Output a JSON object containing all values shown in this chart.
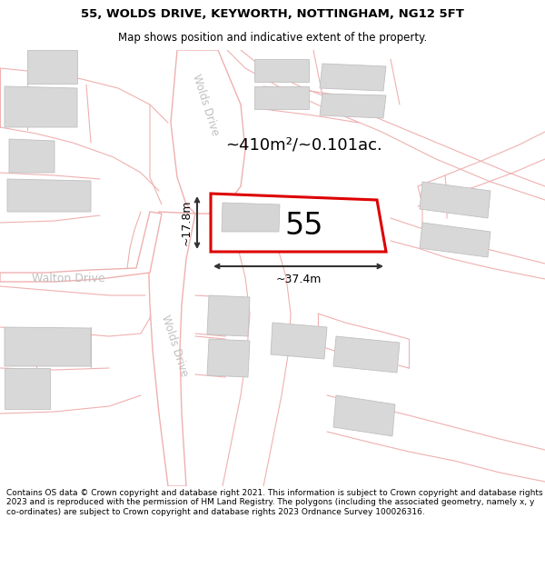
{
  "title_line1": "55, WOLDS DRIVE, KEYWORTH, NOTTINGHAM, NG12 5FT",
  "title_line2": "Map shows position and indicative extent of the property.",
  "footer_text": "Contains OS data © Crown copyright and database right 2021. This information is subject to Crown copyright and database rights 2023 and is reproduced with the permission of HM Land Registry. The polygons (including the associated geometry, namely x, y co-ordinates) are subject to Crown copyright and database rights 2023 Ordnance Survey 100026316.",
  "bg_color": "#ebebeb",
  "map_bg": "#f5f5f5",
  "road_fill": "#ffffff",
  "pink": "#f0b0b0",
  "plot_color": "#dd0000",
  "building_color": "#d8d8d8",
  "building_edge": "#c0c0c0",
  "dim_color": "#333333",
  "label_color": "#aaaaaa",
  "area_text": "~410m²/~0.101ac.",
  "number_text": "55",
  "dim_width": "~37.4m",
  "dim_height": "~17.8m",
  "road_label_upper": "Wolds Drive",
  "road_label_lower": "Wolds Drive",
  "walton_label": "Walton Drive",
  "title_fontsize": 9.5,
  "subtitle_fontsize": 8.5,
  "footer_fontsize": 6.5
}
